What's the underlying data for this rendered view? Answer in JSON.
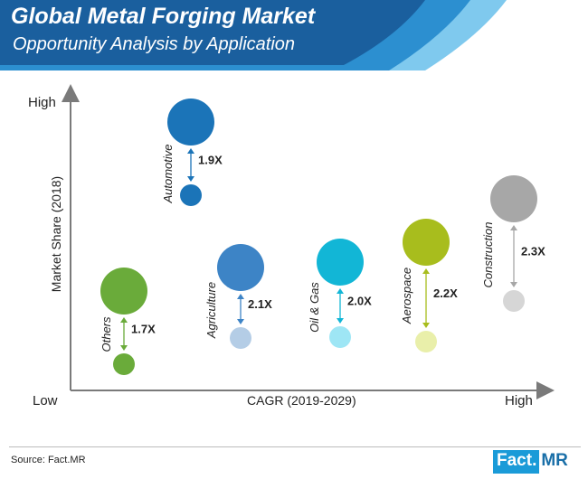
{
  "header": {
    "title": "Global Metal Forging Market",
    "subtitle": "Opportunity Analysis by Application"
  },
  "axes": {
    "y_high": "High",
    "y_low": "Low",
    "x_high": "High",
    "ylabel": "Market Share (2018)",
    "xlabel": "CAGR (2019-2029)"
  },
  "colors": {
    "header_dark": "#1a5f9e",
    "header_mid": "#2c8fd0",
    "header_light": "#7fc9ee"
  },
  "chart_data": {
    "type": "scatter",
    "title": "Opportunity Analysis by Application",
    "xlabel": "CAGR (2019-2029)",
    "ylabel": "Market Share (2018)",
    "series": [
      {
        "name": "Others",
        "multiplier": "1.7X",
        "color_big": "#6aab3a",
        "color_small": "#6aab3a"
      },
      {
        "name": "Automotive",
        "multiplier": "1.9X",
        "color_big": "#1b74b8",
        "color_small": "#1b74b8"
      },
      {
        "name": "Agriculture",
        "multiplier": "2.1X",
        "color_big": "#3d84c6",
        "color_small": "#b4cde6"
      },
      {
        "name": "Oil & Gas",
        "multiplier": "2.0X",
        "color_big": "#12b6d6",
        "color_small": "#9ee6f5"
      },
      {
        "name": "Aerospace",
        "multiplier": "2.2X",
        "color_big": "#a8bd1d",
        "color_small": "#e9efaa"
      },
      {
        "name": "Construction",
        "multiplier": "2.3X",
        "color_big": "#a7a7a7",
        "color_small": "#d6d6d6"
      }
    ]
  },
  "footer": {
    "source": "Source: Fact.MR",
    "logo_left": "Fact.",
    "logo_right": "MR"
  }
}
